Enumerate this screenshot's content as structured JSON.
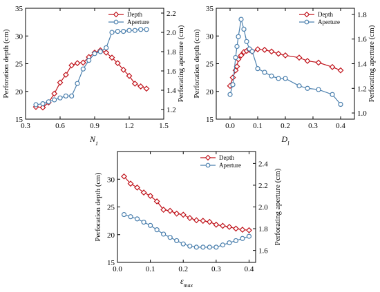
{
  "colors": {
    "depth": "#c0141c",
    "aperture": "#4a7fad"
  },
  "chart_data": [
    {
      "type": "line",
      "xlabel": "N1",
      "xlabel_main": "N",
      "xlabel_sub": "1",
      "ylabel": "Perforation depth (cm)",
      "y2label": "Perforating aperture (cm)",
      "xlim": [
        0.3,
        1.5
      ],
      "ylim": [
        15,
        35
      ],
      "y2lim": [
        1.1,
        2.25
      ],
      "xticks": [
        "0.3",
        "0.6",
        "0.9",
        "1.2",
        "1.5"
      ],
      "yticks": [
        "15",
        "20",
        "25",
        "30",
        "35"
      ],
      "y2ticks": [
        "1.2",
        "1.4",
        "1.6",
        "1.8",
        "2.0",
        "2.2"
      ],
      "legend": "top-right",
      "series": [
        {
          "name": "Depth",
          "axis": "left",
          "x": [
            0.39,
            0.45,
            0.5,
            0.55,
            0.6,
            0.65,
            0.7,
            0.75,
            0.8,
            0.85,
            0.9,
            0.95,
            1.0,
            1.05,
            1.1,
            1.15,
            1.2,
            1.25,
            1.3,
            1.35
          ],
          "y": [
            17.2,
            17.1,
            18.0,
            19.6,
            21.6,
            23.0,
            24.7,
            25.1,
            25.2,
            26.2,
            27.0,
            27.4,
            27.0,
            26.1,
            25.1,
            23.9,
            22.8,
            21.4,
            20.9,
            20.5
          ]
        },
        {
          "name": "Aperture",
          "axis": "right",
          "x": [
            0.39,
            0.45,
            0.5,
            0.55,
            0.6,
            0.65,
            0.7,
            0.75,
            0.8,
            0.85,
            0.9,
            0.95,
            1.0,
            1.05,
            1.1,
            1.15,
            1.2,
            1.25,
            1.3,
            1.35
          ],
          "y": [
            1.25,
            1.26,
            1.28,
            1.3,
            1.32,
            1.34,
            1.34,
            1.47,
            1.62,
            1.71,
            1.78,
            1.8,
            1.84,
            2.0,
            2.01,
            2.01,
            2.02,
            2.02,
            2.03,
            2.03
          ]
        }
      ]
    },
    {
      "type": "line",
      "xlabel": "Dl",
      "xlabel_main": "D",
      "xlabel_sub": "l",
      "ylabel": "Perforation depth (cm)",
      "y2label": "Perforating aperture (cm)",
      "xlim": [
        -0.05,
        0.45
      ],
      "ylim": [
        15,
        35
      ],
      "y2lim": [
        0.95,
        1.85
      ],
      "xticks": [
        "0.0",
        "0.1",
        "0.2",
        "0.3",
        "0.4"
      ],
      "yticks": [
        "15",
        "20",
        "25",
        "30",
        "35"
      ],
      "y2ticks": [
        "1.0",
        "1.2",
        "1.4",
        "1.6",
        "1.8"
      ],
      "legend": "top-right",
      "series": [
        {
          "name": "Depth",
          "axis": "left",
          "x": [
            0.0,
            0.01,
            0.02,
            0.025,
            0.03,
            0.04,
            0.05,
            0.06,
            0.07,
            0.08,
            0.1,
            0.125,
            0.15,
            0.175,
            0.2,
            0.25,
            0.28,
            0.32,
            0.37,
            0.4
          ],
          "y": [
            21.0,
            22.5,
            23.8,
            24.5,
            25.8,
            26.5,
            27.1,
            27.3,
            27.5,
            27.2,
            27.6,
            27.5,
            27.2,
            26.8,
            26.5,
            26.1,
            25.5,
            25.2,
            24.4,
            23.8
          ]
        },
        {
          "name": "Aperture",
          "axis": "right",
          "x": [
            0.0,
            0.01,
            0.02,
            0.025,
            0.03,
            0.04,
            0.05,
            0.06,
            0.07,
            0.08,
            0.1,
            0.125,
            0.15,
            0.175,
            0.2,
            0.25,
            0.28,
            0.32,
            0.37,
            0.4
          ],
          "y": [
            1.15,
            1.23,
            1.45,
            1.54,
            1.62,
            1.76,
            1.68,
            1.58,
            1.52,
            1.5,
            1.36,
            1.33,
            1.3,
            1.28,
            1.28,
            1.22,
            1.2,
            1.19,
            1.15,
            1.07
          ]
        }
      ]
    },
    {
      "type": "line",
      "xlabel": "εmax",
      "xlabel_main": "ε",
      "xlabel_sub": "max",
      "ylabel": "Perforation depth (cm)",
      "y2label": "Perforating aperture (cm)",
      "xlim": [
        0.0,
        0.42
      ],
      "ylim": [
        15,
        35
      ],
      "y2lim": [
        1.49,
        2.51
      ],
      "xticks": [
        "0.0",
        "0.1",
        "0.2",
        "0.3",
        "0.4"
      ],
      "yticks": [
        "15",
        "20",
        "25",
        "30"
      ],
      "y2ticks": [
        "1.6",
        "1.8",
        "2.0",
        "2.2",
        "2.4"
      ],
      "legend": "top-right",
      "series": [
        {
          "name": "Depth",
          "axis": "left",
          "x": [
            0.02,
            0.04,
            0.06,
            0.08,
            0.1,
            0.12,
            0.14,
            0.16,
            0.18,
            0.2,
            0.22,
            0.24,
            0.26,
            0.28,
            0.3,
            0.32,
            0.34,
            0.36,
            0.38,
            0.4
          ],
          "y": [
            30.5,
            29.2,
            28.5,
            27.6,
            27.0,
            26.0,
            24.5,
            24.3,
            23.8,
            23.6,
            23.0,
            22.6,
            22.5,
            22.3,
            21.8,
            21.6,
            21.4,
            21.1,
            20.9,
            20.8
          ]
        },
        {
          "name": "Aperture",
          "axis": "right",
          "x": [
            0.02,
            0.04,
            0.06,
            0.08,
            0.1,
            0.12,
            0.14,
            0.16,
            0.18,
            0.2,
            0.22,
            0.24,
            0.26,
            0.28,
            0.3,
            0.32,
            0.34,
            0.36,
            0.38,
            0.4
          ],
          "y": [
            1.93,
            1.91,
            1.89,
            1.86,
            1.83,
            1.79,
            1.75,
            1.72,
            1.69,
            1.66,
            1.64,
            1.63,
            1.63,
            1.63,
            1.63,
            1.65,
            1.67,
            1.69,
            1.71,
            1.73
          ]
        }
      ]
    }
  ]
}
